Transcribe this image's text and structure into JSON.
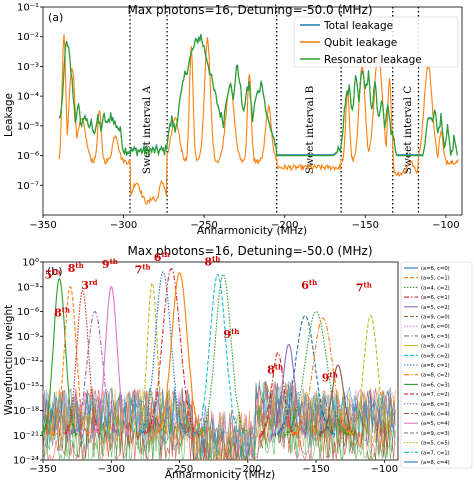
{
  "chart_data": [
    {
      "type": "line",
      "panel_label": "(a)",
      "title": "Max photons=16, Detuning=-50.0 (MHz)",
      "xlabel": "Anharmonicity (MHz)",
      "ylabel": "Leakage",
      "xlim": [
        -350,
        -90
      ],
      "ylim_exp": [
        -8,
        -1
      ],
      "yscale": "log",
      "x_ticks": [
        "−350",
        "−300",
        "−250",
        "−200",
        "−150",
        "−100"
      ],
      "y_ticks": [
        "10⁻¹",
        "10⁻²",
        "10⁻³",
        "10⁻⁴",
        "10⁻⁵",
        "10⁻⁶",
        "10⁻⁷"
      ],
      "legend_position": "top-right",
      "series": [
        {
          "name": "Total leakage",
          "color": "#1f77b4"
        },
        {
          "name": "Qubit leakage",
          "color": "#ff7f0e"
        },
        {
          "name": "Resonator leakage",
          "color": "#2ca02c"
        }
      ],
      "resonator_leakage": {
        "x": [
          -340,
          -338,
          -336,
          -334,
          -332,
          -330,
          -328,
          -326,
          -324,
          -322,
          -320,
          -318,
          -316,
          -314,
          -312,
          -310,
          -308,
          -306,
          -304,
          -302,
          -300,
          -297,
          -285,
          -274,
          -272,
          -270,
          -268,
          -266,
          -264,
          -262,
          -260,
          -258,
          -256,
          -254,
          -252,
          -250,
          -248,
          -246,
          -244,
          -242,
          -240,
          -238,
          -236,
          -234,
          -232,
          -230,
          -228,
          -226,
          -224,
          -222,
          -220,
          -218,
          -216,
          -214,
          -212,
          -210,
          -208,
          -206,
          -205,
          -200,
          -190,
          -180,
          -170,
          -165,
          -163,
          -162,
          -160,
          -158,
          -156,
          -154,
          -152,
          -150,
          -148,
          -146,
          -144,
          -142,
          -140,
          -138,
          -136,
          -134,
          -132,
          -130,
          -125,
          -120,
          -115,
          -113,
          -111,
          -109,
          -107,
          -105,
          -103,
          -101,
          -99,
          -97,
          -95,
          -93
        ],
        "y_exp": [
          -4.8,
          -4.3,
          -2.2,
          -2.5,
          -3.5,
          -4.8,
          -4.4,
          -5.0,
          -4.6,
          -5.1,
          -4.9,
          -5.2,
          -4.8,
          -5.1,
          -4.7,
          -5.0,
          -4.6,
          -4.9,
          -5.0,
          -5.2,
          -5.8,
          -5.85,
          -5.85,
          -5.85,
          -5.2,
          -4.8,
          -5.2,
          -4.5,
          -3.9,
          -3.3,
          -3.0,
          -2.6,
          -2.3,
          -2.1,
          -2.0,
          -2.4,
          -2.8,
          -3.3,
          -3.8,
          -4.2,
          -4.6,
          -4.9,
          -4.0,
          -3.5,
          -4.2,
          -3.0,
          -3.4,
          -4.6,
          -4.0,
          -3.6,
          -4.8,
          -4.1,
          -3.8,
          -3.5,
          -4.4,
          -4.9,
          -5.2,
          -5.6,
          -6.0,
          -6.0,
          -6.0,
          -6.0,
          -6.0,
          -5.8,
          -4.4,
          -4.2,
          -3.6,
          -4.6,
          -3.4,
          -4.2,
          -3.1,
          -3.8,
          -3.3,
          -4.5,
          -3.6,
          -4.8,
          -4.1,
          -5.0,
          -4.4,
          -5.2,
          -5.6,
          -6.0,
          -6.0,
          -6.0,
          -6.0,
          -5.6,
          -4.6,
          -4.9,
          -4.4,
          -5.3,
          -4.7,
          -5.8,
          -5.0,
          -6.0,
          -5.5,
          -6.0
        ]
      },
      "qubit_leakage_peaks": {
        "x": [
          -337,
          -332,
          -326,
          -315,
          -305,
          -292,
          -282,
          -276,
          -268,
          -258,
          -248,
          -234,
          -222,
          -210,
          -171,
          -161,
          -152,
          -142,
          -135,
          -122,
          -111,
          -103
        ],
        "y_exp": [
          -2.0,
          -3.0,
          -4.8,
          -4.5,
          -5.3,
          -6.9,
          -7.4,
          -6.9,
          -4.8,
          -2.4,
          -2.1,
          -3.6,
          -3.2,
          -4.4,
          -6.5,
          -3.8,
          -2.9,
          -2.6,
          -3.4,
          -6.2,
          -3.0,
          -5.2
        ]
      },
      "annotations": [
        {
          "text": "Sweet interval A",
          "x": -286
        },
        {
          "text": "Sweet interval B",
          "x": -185
        },
        {
          "text": "Sweet interval C",
          "x": -124
        }
      ],
      "vlines_x": [
        -296,
        -273,
        -205,
        -165,
        -133,
        -117
      ]
    },
    {
      "type": "line",
      "panel_label": "(b)",
      "title": "Max photons=16, Detuning=-50.0 (MHz)",
      "xlabel": "Anharmonicity (MHz)",
      "ylabel": "Wavefunction weight",
      "xlim": [
        -350,
        -90
      ],
      "ylim_exp": [
        -24,
        0
      ],
      "yscale": "log",
      "x_ticks": [
        "−350",
        "−300",
        "−250",
        "−200",
        "−150",
        "−100"
      ],
      "y_ticks": [
        "10⁰",
        "10⁻³",
        "10⁻⁶",
        "10⁻⁹",
        "10⁻¹²",
        "10⁻¹⁵",
        "10⁻¹⁸",
        "10⁻²¹",
        "10⁻²⁴"
      ],
      "legend_position": "right",
      "legend_entries": [
        "(a=6, c=0)",
        "(a=5, c=1)",
        "(a=4, c=2)",
        "(a=6, c=1)",
        "(a=5, c=2)",
        "(a=9, c=0)",
        "(a=8, c=0)",
        "(a=5, c=3)",
        "(a=9, c=1)",
        "(a=9, c=2)",
        "(a=8, c=1)",
        "(a=8, c=2)",
        "(a=6, c=3)",
        "(a=7, c=2)",
        "(a=8, c=3)",
        "(a=6, c=4)",
        "(a=5, c=4)",
        "(a=9, c=3)",
        "(a=5, c=5)",
        "(a=7, c=1)",
        "(a=8, c=4)"
      ],
      "legend_colors": [
        "#1f77b4",
        "#ff7f0e",
        "#2ca02c",
        "#d62728",
        "#9467bd",
        "#8c564b",
        "#e377c2",
        "#7f7f7f",
        "#bcbd22",
        "#17becf",
        "#1f77b4",
        "#ff7f0e",
        "#2ca02c",
        "#d62728",
        "#9467bd",
        "#8c564b",
        "#e377c2",
        "#7f7f7f",
        "#bcbd22",
        "#17becf",
        "#1f77b4"
      ],
      "peaks": [
        {
          "center": -338,
          "peak_exp": -2.0,
          "width": 6,
          "color": "#2ca02c"
        },
        {
          "center": -330,
          "peak_exp": -3.0,
          "width": 6,
          "color": "#ff7f0e"
        },
        {
          "center": -321,
          "peak_exp": -3.5,
          "width": 6,
          "color": "#d62728"
        },
        {
          "center": -312,
          "peak_exp": -6.0,
          "width": 8,
          "color": "#9467bd"
        },
        {
          "center": -300,
          "peak_exp": -3.0,
          "width": 6,
          "color": "#e377c2"
        },
        {
          "center": -270,
          "peak_exp": -2.5,
          "width": 5,
          "color": "#bcbd22"
        },
        {
          "center": -262,
          "peak_exp": -1.2,
          "width": 8,
          "color": "#1f77b4"
        },
        {
          "center": -256,
          "peak_exp": -0.8,
          "width": 9,
          "color": "#d62728"
        },
        {
          "center": -250,
          "peak_exp": -1.3,
          "width": 8,
          "color": "#ff7f0e"
        },
        {
          "center": -222,
          "peak_exp": -1.5,
          "width": 8,
          "color": "#17becf"
        },
        {
          "center": -218,
          "peak_exp": -1.5,
          "width": 8,
          "color": "#2ca02c"
        },
        {
          "center": -178,
          "peak_exp": -11.0,
          "width": 6,
          "color": "#d62728"
        },
        {
          "center": -170,
          "peak_exp": -10.0,
          "width": 6,
          "color": "#9467bd"
        },
        {
          "center": -158,
          "peak_exp": -6.5,
          "width": 10,
          "color": "#1f77b4"
        },
        {
          "center": -150,
          "peak_exp": -6.0,
          "width": 11,
          "color": "#2ca02c"
        },
        {
          "center": -145,
          "peak_exp": -6.8,
          "width": 10,
          "color": "#ff7f0e"
        },
        {
          "center": -134,
          "peak_exp": -12.5,
          "width": 6,
          "color": "#8c564b"
        },
        {
          "center": -110,
          "peak_exp": -6.5,
          "width": 7,
          "color": "#bcbd22"
        }
      ],
      "order_labels": [
        {
          "num": "5",
          "sup": "th",
          "x": -343,
          "y_exp": -2.0
        },
        {
          "num": "8",
          "sup": "th",
          "x": -326,
          "y_exp": -1.2
        },
        {
          "num": "3",
          "sup": "rd",
          "x": -316,
          "y_exp": -3.3
        },
        {
          "num": "9",
          "sup": "th",
          "x": -301,
          "y_exp": -0.7
        },
        {
          "num": "8",
          "sup": "th",
          "x": -336,
          "y_exp": -6.6
        },
        {
          "num": "7",
          "sup": "th",
          "x": -277,
          "y_exp": -1.4
        },
        {
          "num": "6",
          "sup": "th",
          "x": -263,
          "y_exp": 0.1
        },
        {
          "num": "8",
          "sup": "th",
          "x": -226,
          "y_exp": -0.4
        },
        {
          "num": "9",
          "sup": "th",
          "x": -212,
          "y_exp": -9.2
        },
        {
          "num": "8",
          "sup": "th",
          "x": -180,
          "y_exp": -13.5
        },
        {
          "num": "6",
          "sup": "th",
          "x": -155,
          "y_exp": -3.3
        },
        {
          "num": "9",
          "sup": "th",
          "x": -140,
          "y_exp": -14.5
        },
        {
          "num": "7",
          "sup": "th",
          "x": -115,
          "y_exp": -3.6
        }
      ]
    }
  ]
}
